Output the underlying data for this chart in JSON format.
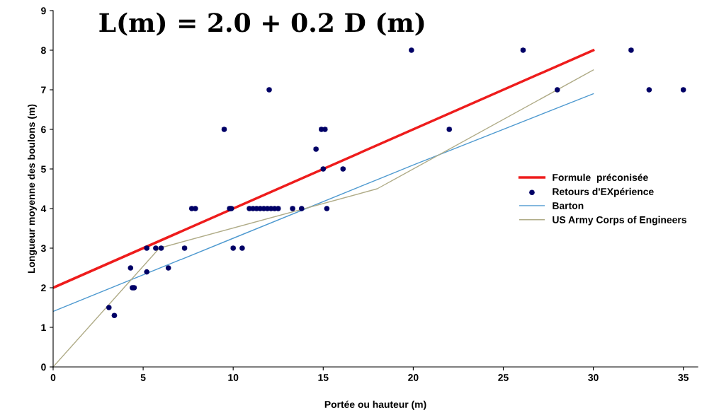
{
  "chart_data": {
    "type": "scatter",
    "title": "L(m) = 2.0 + 0.2 D (m)",
    "xlabel": "Portée ou hauteur (m)",
    "ylabel": "Longueur moyenne des boulons (m)",
    "xlim": [
      0,
      35.8
    ],
    "ylim": [
      0,
      9
    ],
    "xticks": [
      0,
      5,
      10,
      15,
      20,
      25,
      30,
      35
    ],
    "yticks": [
      0,
      1,
      2,
      3,
      4,
      5,
      6,
      7,
      8,
      9
    ],
    "grid": false,
    "legend": "right",
    "series": [
      {
        "name": "Formule  préconisée",
        "type": "line",
        "color": "#ee1c1c",
        "x": [
          0,
          30
        ],
        "values": [
          2,
          8
        ],
        "marker": "none"
      },
      {
        "name": "Retours d'EXpérience",
        "color": "#000066",
        "marker": "circle",
        "x": [
          3.1,
          3.4,
          4.3,
          4.4,
          4.5,
          5.2,
          5.2,
          5.7,
          6.0,
          6.4,
          7.3,
          7.7,
          7.9,
          9.5,
          9.8,
          9.9,
          10.0,
          10.5,
          12.0,
          10.9,
          11.1,
          11.3,
          11.5,
          11.7,
          11.9,
          12.1,
          12.3,
          12.5,
          13.3,
          13.8,
          14.6,
          14.9,
          15.1,
          15.0,
          15.2,
          16.1,
          19.9,
          22.0,
          26.1,
          28.0,
          32.1,
          33.1,
          35.0
        ],
        "values": [
          1.5,
          1.3,
          2.5,
          2.0,
          2.0,
          3.0,
          2.4,
          3.0,
          3.0,
          2.5,
          3.0,
          4.0,
          4.0,
          6.0,
          4.0,
          4.0,
          3.0,
          3.0,
          7.0,
          4.0,
          4.0,
          4.0,
          4.0,
          4.0,
          4.0,
          4.0,
          4.0,
          4.0,
          4.0,
          4.0,
          5.5,
          6.0,
          6.0,
          5.0,
          4.0,
          5.0,
          8.0,
          6.0,
          8.0,
          7.0,
          8.0,
          7.0,
          7.0
        ]
      },
      {
        "name": "Barton",
        "type": "line",
        "color": "#4f9ad0",
        "x": [
          0,
          10,
          20,
          30
        ],
        "values": [
          1.4,
          3.25,
          5.1,
          6.9
        ],
        "marker": "none"
      },
      {
        "name": "US Army Corps of Engineers",
        "type": "line",
        "color": "#b0ac88",
        "x": [
          0,
          5.9,
          18,
          30
        ],
        "values": [
          0,
          3.0,
          4.5,
          7.5
        ],
        "marker": "none"
      }
    ]
  }
}
